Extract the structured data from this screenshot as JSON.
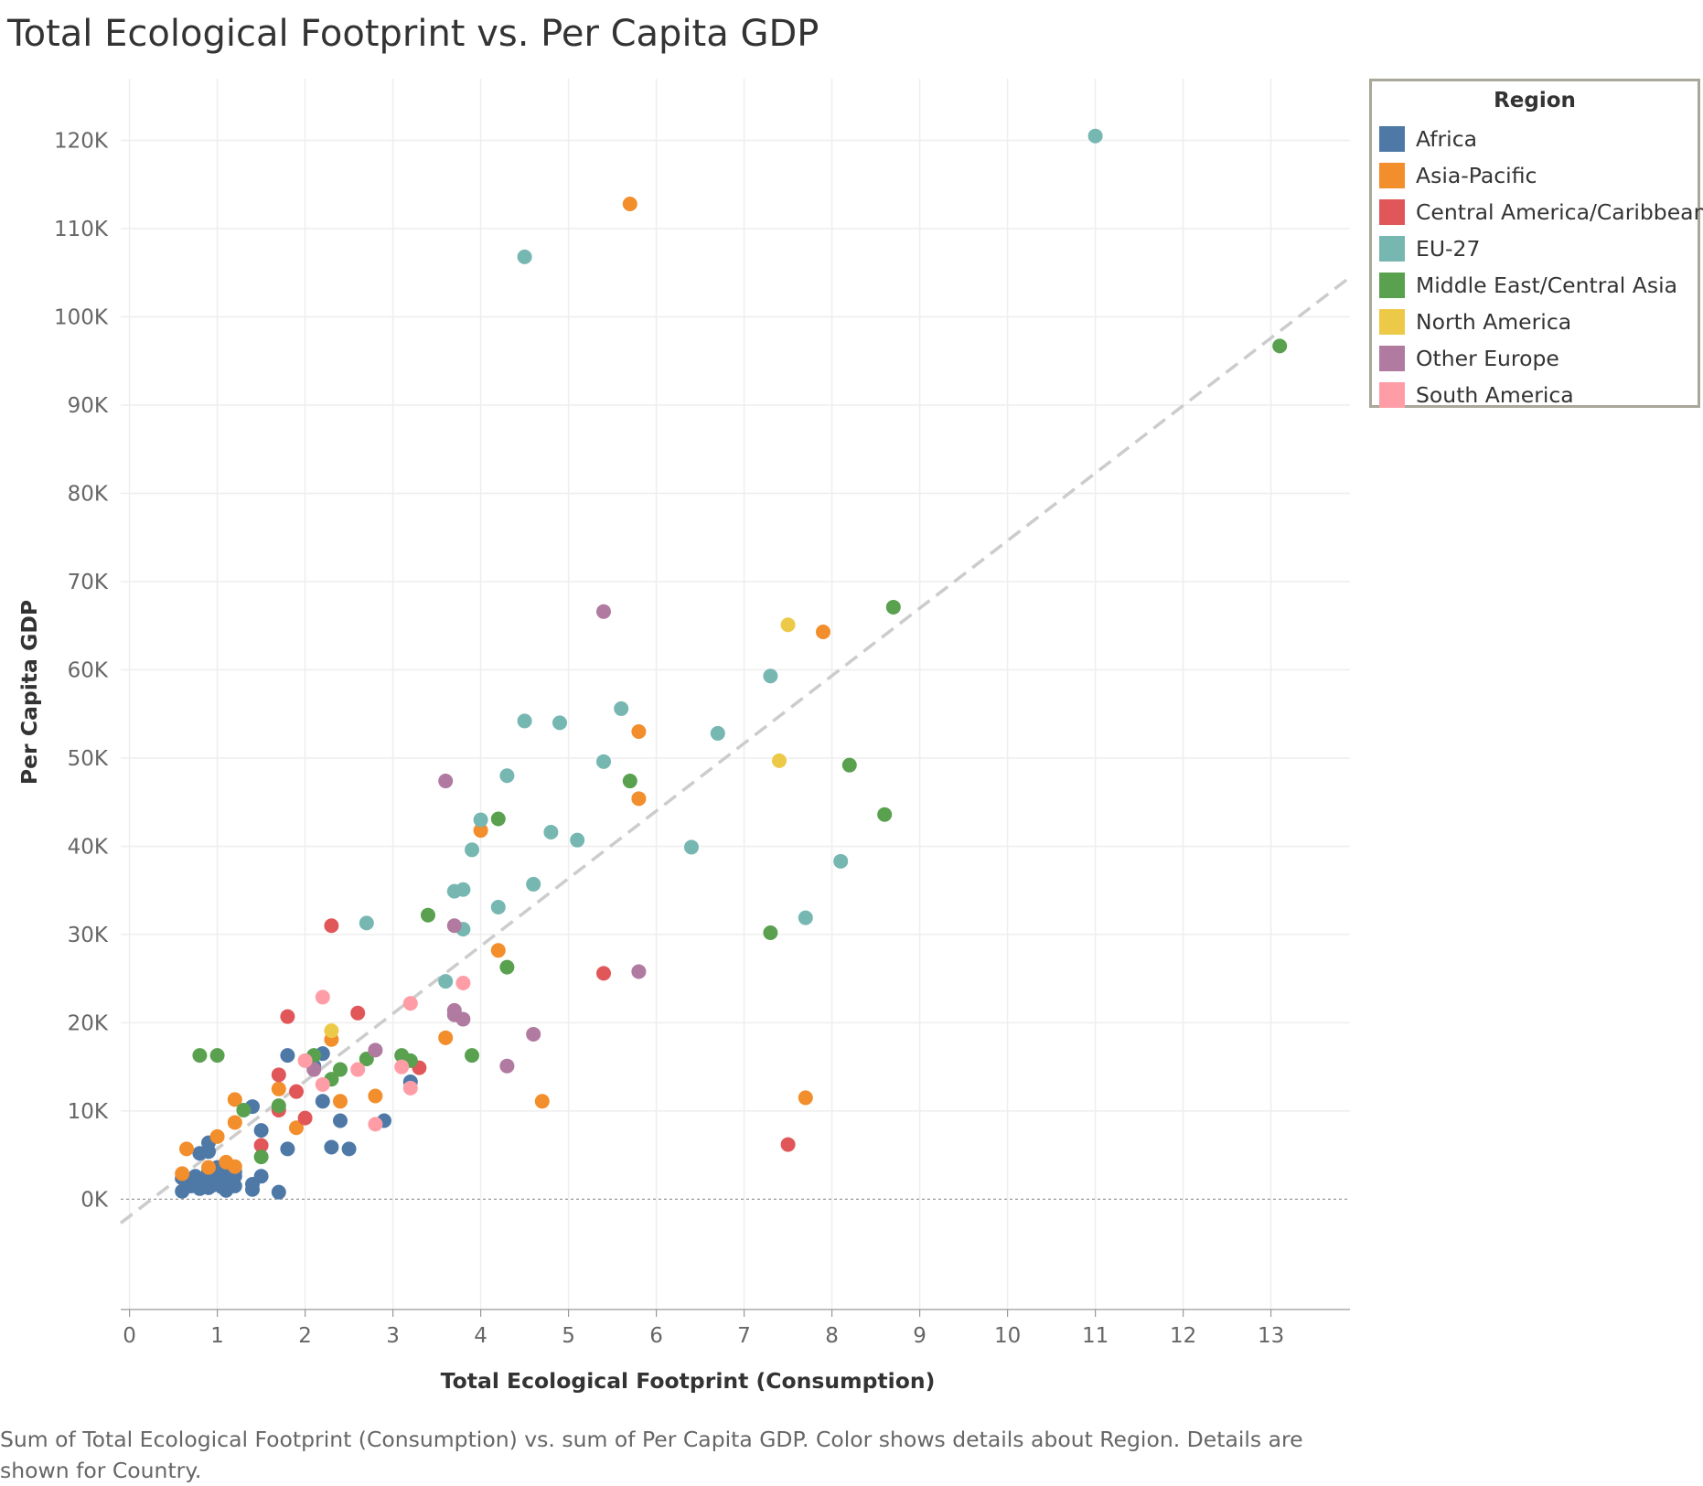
{
  "title": "Total Ecological Footprint vs. Per Capita GDP",
  "caption": "Sum of Total Ecological Footprint (Consumption) vs. sum of Per Capita GDP.  Color shows details about Region.  Details are shown for Country.",
  "legend": {
    "title": "Region",
    "items": [
      {
        "label": "Africa",
        "color": "#4e79a7"
      },
      {
        "label": "Asia-Pacific",
        "color": "#f28e2b"
      },
      {
        "label": "Central America/Caribbean",
        "color": "#e15759"
      },
      {
        "label": "EU-27",
        "color": "#76b7b2"
      },
      {
        "label": "Middle East/Central Asia",
        "color": "#59a14f"
      },
      {
        "label": "North America",
        "color": "#edc948"
      },
      {
        "label": "Other Europe",
        "color": "#b07aa1"
      },
      {
        "label": "South America",
        "color": "#ff9da7"
      }
    ]
  },
  "chart_data": {
    "type": "scatter",
    "title": "Total Ecological Footprint vs. Per Capita GDP",
    "xlabel": "Total Ecological Footprint (Consumption)",
    "ylabel": "Per Capita GDP",
    "xlim": [
      -0.1,
      13.9
    ],
    "ylim": [
      -12500,
      127000
    ],
    "x_ticks": [
      0,
      1,
      2,
      3,
      4,
      5,
      6,
      7,
      8,
      9,
      10,
      11,
      12,
      13
    ],
    "y_ticks": [
      0,
      10000,
      20000,
      30000,
      40000,
      50000,
      60000,
      70000,
      80000,
      90000,
      100000,
      110000,
      120000
    ],
    "y_tick_labels": [
      "0K",
      "10K",
      "20K",
      "30K",
      "40K",
      "50K",
      "60K",
      "70K",
      "80K",
      "90K",
      "100K",
      "110K",
      "120K"
    ],
    "grid": true,
    "legend_position": "right",
    "trend_line": {
      "style": "dashed",
      "color": "#cccccc",
      "x": [
        -0.1,
        13.9
      ],
      "y": [
        -2700,
        104500
      ]
    },
    "series": [
      {
        "name": "Africa",
        "color": "#4e79a7",
        "points": [
          [
            0.6,
            900
          ],
          [
            0.6,
            2400
          ],
          [
            0.7,
            1500
          ],
          [
            0.75,
            2600
          ],
          [
            0.8,
            1200
          ],
          [
            0.8,
            5200
          ],
          [
            0.85,
            1800
          ],
          [
            0.9,
            1300
          ],
          [
            0.9,
            2200
          ],
          [
            0.9,
            3200
          ],
          [
            0.9,
            5400
          ],
          [
            0.9,
            6400
          ],
          [
            0.95,
            1600
          ],
          [
            1.0,
            1900
          ],
          [
            1.0,
            2800
          ],
          [
            1.0,
            3600
          ],
          [
            1.05,
            1400
          ],
          [
            1.1,
            1000
          ],
          [
            1.1,
            2400
          ],
          [
            1.1,
            3300
          ],
          [
            1.15,
            1800
          ],
          [
            1.2,
            1500
          ],
          [
            1.2,
            2600
          ],
          [
            1.2,
            3100
          ],
          [
            1.4,
            1100
          ],
          [
            1.4,
            1700
          ],
          [
            1.4,
            10500
          ],
          [
            1.5,
            2600
          ],
          [
            1.5,
            7800
          ],
          [
            1.7,
            800
          ],
          [
            1.8,
            5700
          ],
          [
            1.8,
            16300
          ],
          [
            2.1,
            15100
          ],
          [
            2.2,
            11100
          ],
          [
            2.2,
            16500
          ],
          [
            2.3,
            5900
          ],
          [
            2.4,
            8900
          ],
          [
            2.5,
            5700
          ],
          [
            2.9,
            8900
          ],
          [
            3.2,
            13300
          ]
        ]
      },
      {
        "name": "Asia-Pacific",
        "color": "#f28e2b",
        "points": [
          [
            0.6,
            2900
          ],
          [
            0.65,
            5700
          ],
          [
            0.9,
            3600
          ],
          [
            1.0,
            7100
          ],
          [
            1.1,
            4200
          ],
          [
            1.2,
            3700
          ],
          [
            1.2,
            8700
          ],
          [
            1.2,
            11300
          ],
          [
            1.7,
            12500
          ],
          [
            1.9,
            8100
          ],
          [
            2.3,
            18100
          ],
          [
            2.4,
            11100
          ],
          [
            2.8,
            11700
          ],
          [
            3.6,
            18300
          ],
          [
            4.0,
            41800
          ],
          [
            4.2,
            28200
          ],
          [
            4.7,
            11100
          ],
          [
            5.7,
            112800
          ],
          [
            5.8,
            45400
          ],
          [
            5.8,
            53000
          ],
          [
            7.7,
            11500
          ],
          [
            7.9,
            64300
          ]
        ]
      },
      {
        "name": "Central America/Caribbean",
        "color": "#e15759",
        "points": [
          [
            1.5,
            6100
          ],
          [
            1.7,
            10100
          ],
          [
            1.7,
            14100
          ],
          [
            1.8,
            20700
          ],
          [
            1.9,
            12200
          ],
          [
            2.0,
            9200
          ],
          [
            2.3,
            31000
          ],
          [
            2.6,
            21100
          ],
          [
            3.3,
            14900
          ],
          [
            5.4,
            25600
          ],
          [
            7.5,
            6200
          ]
        ]
      },
      {
        "name": "EU-27",
        "color": "#76b7b2",
        "points": [
          [
            2.7,
            31300
          ],
          [
            3.6,
            24700
          ],
          [
            3.7,
            34900
          ],
          [
            3.8,
            30600
          ],
          [
            3.8,
            35100
          ],
          [
            3.9,
            39600
          ],
          [
            4.0,
            43000
          ],
          [
            4.2,
            33100
          ],
          [
            4.3,
            48000
          ],
          [
            4.5,
            54200
          ],
          [
            4.5,
            106800
          ],
          [
            4.6,
            35700
          ],
          [
            4.8,
            41600
          ],
          [
            4.9,
            54000
          ],
          [
            5.1,
            40700
          ],
          [
            5.4,
            49600
          ],
          [
            5.6,
            55600
          ],
          [
            6.4,
            39900
          ],
          [
            6.7,
            52800
          ],
          [
            7.3,
            59300
          ],
          [
            7.7,
            31900
          ],
          [
            8.1,
            38300
          ],
          [
            11.0,
            120500
          ]
        ]
      },
      {
        "name": "Middle East/Central Asia",
        "color": "#59a14f",
        "points": [
          [
            0.8,
            16300
          ],
          [
            1.0,
            16300
          ],
          [
            1.3,
            10100
          ],
          [
            1.5,
            4800
          ],
          [
            1.7,
            10600
          ],
          [
            2.1,
            16300
          ],
          [
            2.3,
            13600
          ],
          [
            2.4,
            14700
          ],
          [
            2.7,
            15900
          ],
          [
            3.1,
            16300
          ],
          [
            3.2,
            15700
          ],
          [
            3.4,
            32200
          ],
          [
            3.9,
            16300
          ],
          [
            4.2,
            43100
          ],
          [
            4.3,
            26300
          ],
          [
            5.7,
            47400
          ],
          [
            7.3,
            30200
          ],
          [
            8.2,
            49200
          ],
          [
            8.6,
            43600
          ],
          [
            8.7,
            67100
          ],
          [
            13.1,
            96700
          ]
        ]
      },
      {
        "name": "North America",
        "color": "#edc948",
        "points": [
          [
            2.3,
            19100
          ],
          [
            7.4,
            49700
          ],
          [
            7.5,
            65100
          ]
        ]
      },
      {
        "name": "Other Europe",
        "color": "#b07aa1",
        "points": [
          [
            2.1,
            14700
          ],
          [
            2.8,
            16900
          ],
          [
            3.6,
            47400
          ],
          [
            3.7,
            20900
          ],
          [
            3.7,
            21400
          ],
          [
            3.7,
            31000
          ],
          [
            3.8,
            20400
          ],
          [
            4.3,
            15100
          ],
          [
            4.6,
            18700
          ],
          [
            5.4,
            66600
          ],
          [
            5.8,
            25800
          ]
        ]
      },
      {
        "name": "South America",
        "color": "#ff9da7",
        "points": [
          [
            2.0,
            15700
          ],
          [
            2.2,
            13000
          ],
          [
            2.2,
            22900
          ],
          [
            2.6,
            14700
          ],
          [
            2.8,
            8500
          ],
          [
            3.1,
            15000
          ],
          [
            3.2,
            12600
          ],
          [
            3.2,
            22200
          ],
          [
            3.8,
            24500
          ]
        ]
      }
    ]
  }
}
